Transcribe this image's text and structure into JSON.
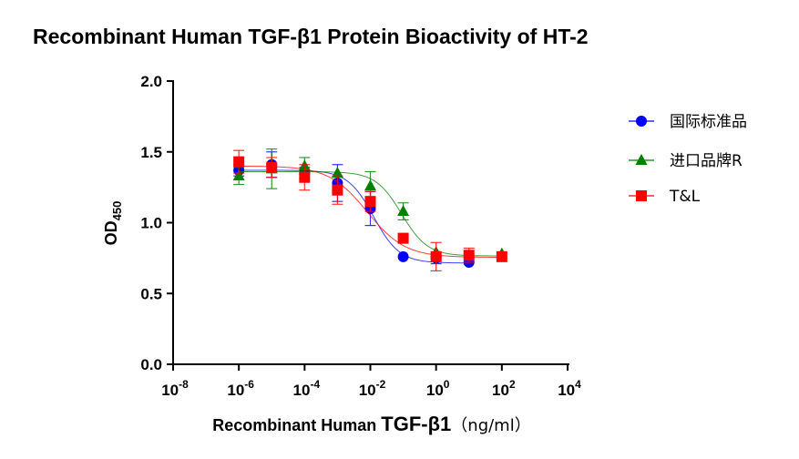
{
  "chart_data": {
    "type": "scatter",
    "title": "Recombinant Human TGF-β1 Protein Bioactivity of HT-2",
    "xlabel": {
      "prefix": "Recombinant Human ",
      "main": "TGF-β1",
      "unit": "（ng/ml）"
    },
    "ylabel": {
      "base": "OD",
      "sub": "450"
    },
    "x_scale": "log10",
    "xlim": [
      1e-08,
      10000
    ],
    "ylim": [
      0,
      2.0
    ],
    "x_ticks": [
      {
        "value": 1e-08,
        "base": "10",
        "exp": "-8"
      },
      {
        "value": 1e-06,
        "base": "10",
        "exp": "-6"
      },
      {
        "value": 0.0001,
        "base": "10",
        "exp": "-4"
      },
      {
        "value": 0.01,
        "base": "10",
        "exp": "-2"
      },
      {
        "value": 1,
        "base": "10",
        "exp": "0"
      },
      {
        "value": 100,
        "base": "10",
        "exp": "2"
      },
      {
        "value": 10000,
        "base": "10",
        "exp": "4"
      }
    ],
    "y_ticks": [
      {
        "value": 0.0,
        "label": "0.0"
      },
      {
        "value": 0.5,
        "label": "0.5"
      },
      {
        "value": 1.0,
        "label": "1.0"
      },
      {
        "value": 1.5,
        "label": "1.5"
      },
      {
        "value": 2.0,
        "label": "2.0"
      }
    ],
    "legend_position": "right",
    "grid": false,
    "fit": "sigmoidal dose-response curve",
    "series": [
      {
        "name": "国际标准品",
        "color": "#0000ff",
        "marker": "circle",
        "x": [
          1e-06,
          1e-05,
          0.0001,
          0.001,
          0.01,
          0.1,
          1,
          10
        ],
        "y": [
          1.37,
          1.41,
          1.35,
          1.28,
          1.1,
          0.76,
          0.75,
          0.72
        ],
        "err": [
          0.04,
          0.09,
          0.04,
          0.13,
          0.12,
          0.0,
          0.04,
          0.0
        ],
        "fit_params": {
          "top": 1.37,
          "bottom": 0.715,
          "logEC50": -1.9,
          "hill": 1.1
        }
      },
      {
        "name": "进口品牌R",
        "color": "#008000",
        "marker": "triangle",
        "x": [
          1e-06,
          1e-05,
          0.0001,
          0.001,
          0.01,
          0.1,
          1,
          100
        ],
        "y": [
          1.33,
          1.38,
          1.4,
          1.35,
          1.26,
          1.08,
          0.79,
          0.78
        ],
        "err": [
          0.06,
          0.14,
          0.06,
          0.0,
          0.1,
          0.06,
          0.0,
          0.0
        ],
        "fit_params": {
          "top": 1.36,
          "bottom": 0.765,
          "logEC50": -1.05,
          "hill": 1.1
        }
      },
      {
        "name": "T&L",
        "color": "#ff0000",
        "marker": "square",
        "x": [
          1e-06,
          1e-05,
          0.0001,
          0.001,
          0.01,
          0.1,
          1,
          10,
          100
        ],
        "y": [
          1.43,
          1.39,
          1.32,
          1.23,
          1.15,
          0.89,
          0.76,
          0.77,
          0.76
        ],
        "err": [
          0.08,
          0.07,
          0.09,
          0.1,
          0.07,
          0.0,
          0.1,
          0.05,
          0.0
        ],
        "fit_params": {
          "top": 1.4,
          "bottom": 0.755,
          "logEC50": -2.1,
          "hill": 0.75
        }
      }
    ]
  }
}
